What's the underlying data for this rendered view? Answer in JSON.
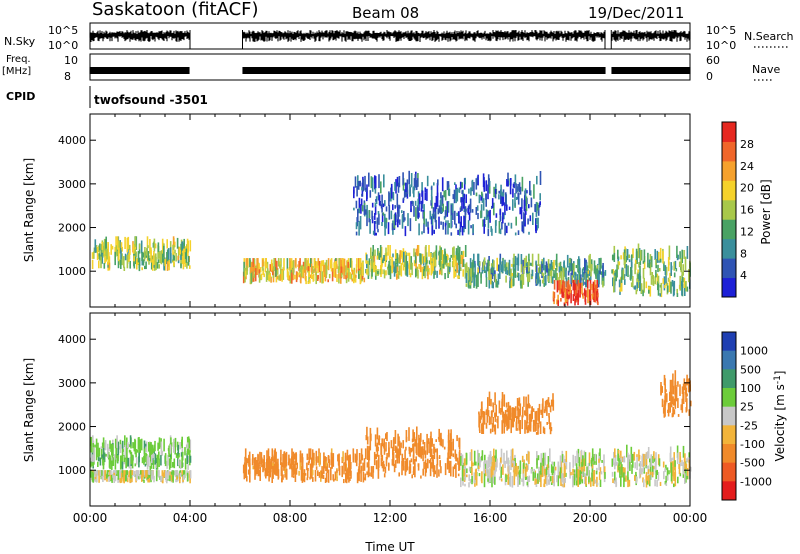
{
  "header": {
    "station": "Saskatoon (fitACF)",
    "beam": "Beam 08",
    "date": "19/Dec/2011"
  },
  "strips": {
    "nsky_label": "N.Sky",
    "nsky_ticks": [
      "10^5",
      "10^0"
    ],
    "nsearch_label": "N.Search",
    "nsearch_ticks": [
      "10^5",
      "10^0"
    ],
    "freq_label": "Freq.",
    "freq_unit": "[MHz]",
    "freq_ticks": [
      "10",
      "8"
    ],
    "nave_label": "Nave",
    "nave_ticks": [
      "60",
      "0"
    ],
    "cpid_label": "CPID",
    "cpid_value": "twofsound -3501"
  },
  "chart_data": [
    {
      "type": "heatmap",
      "quantity": "power",
      "ylabel": "Slant Range [km]",
      "xlim_hours_ut": [
        0,
        24
      ],
      "ylim_km": [
        180,
        4600
      ],
      "y_ticks": [
        1000,
        2000,
        3000,
        4000
      ],
      "colorbar": {
        "label": "Power [dB]",
        "tick_labels": [
          "4",
          "8",
          "12",
          "16",
          "20",
          "24",
          "28"
        ],
        "colors": [
          "#1d20d6",
          "#2f54b4",
          "#3a8f9c",
          "#49a264",
          "#a8c84a",
          "#f5d22b",
          "#f5a12d",
          "#f0662a",
          "#e62820"
        ]
      },
      "data_gaps_hours_ut": [
        [
          4.0,
          6.1
        ],
        [
          20.6,
          20.85
        ]
      ],
      "echo_regions": [
        {
          "t": [
            0.0,
            4.0
          ],
          "range_km": [
            1000,
            1800
          ],
          "power_db": 16
        },
        {
          "t": [
            6.1,
            11.0
          ],
          "range_km": [
            700,
            1300
          ],
          "power_db": 20
        },
        {
          "t": [
            11.0,
            15.0
          ],
          "range_km": [
            800,
            1600
          ],
          "power_db": 16
        },
        {
          "t": [
            15.0,
            20.6
          ],
          "range_km": [
            600,
            1400
          ],
          "power_db": 12
        },
        {
          "t": [
            18.5,
            20.3
          ],
          "range_km": [
            200,
            800
          ],
          "power_db": 28
        },
        {
          "t": [
            20.85,
            24.0
          ],
          "range_km": [
            400,
            1700
          ],
          "power_db": 14
        },
        {
          "t": [
            10.5,
            18.0
          ],
          "range_km": [
            1800,
            3500
          ],
          "power_db": 6
        }
      ]
    },
    {
      "type": "heatmap",
      "quantity": "velocity",
      "xlabel": "Time UT",
      "ylabel": "Slant Range [km]",
      "xlim_hours_ut": [
        0,
        24
      ],
      "x_tick_labels": [
        "00:00",
        "04:00",
        "08:00",
        "12:00",
        "16:00",
        "20:00",
        "00:00"
      ],
      "ylim_km": [
        180,
        4600
      ],
      "y_ticks": [
        1000,
        2000,
        3000,
        4000
      ],
      "colorbar": {
        "label": "Velocity [m s",
        "label_superscript": "-1",
        "label_close": "]",
        "tick_labels": [
          "1000",
          "500",
          "100",
          "25",
          "-25",
          "-100",
          "-500",
          "-1000"
        ],
        "colors": [
          "#1f3fb2",
          "#3a78b0",
          "#3f9a6a",
          "#6ccc3a",
          "#c8c8c8",
          "#f2b43a",
          "#f08a2a",
          "#ee5a24",
          "#e41c1c"
        ]
      },
      "data_gaps_hours_ut": [
        [
          4.0,
          6.1
        ],
        [
          20.6,
          20.85
        ]
      ],
      "echo_regions": [
        {
          "t": [
            0.0,
            4.0
          ],
          "range_km": [
            1000,
            1800
          ],
          "velocity_ms": 60
        },
        {
          "t": [
            0.0,
            4.0
          ],
          "range_km": [
            700,
            1000
          ],
          "velocity_ms": 0
        },
        {
          "t": [
            6.1,
            11.0
          ],
          "range_km": [
            700,
            1500
          ],
          "velocity_ms": -150
        },
        {
          "t": [
            11.0,
            14.8
          ],
          "range_km": [
            800,
            2100
          ],
          "velocity_ms": -300
        },
        {
          "t": [
            14.8,
            20.6
          ],
          "range_km": [
            600,
            1500
          ],
          "velocity_ms": 0
        },
        {
          "t": [
            20.85,
            24.0
          ],
          "range_km": [
            600,
            1600
          ],
          "velocity_ms": 0
        },
        {
          "t": [
            15.5,
            18.5
          ],
          "range_km": [
            1800,
            2800
          ],
          "velocity_ms": -400
        },
        {
          "t": [
            22.8,
            24.0
          ],
          "range_km": [
            2200,
            3300
          ],
          "velocity_ms": -400
        }
      ]
    }
  ]
}
